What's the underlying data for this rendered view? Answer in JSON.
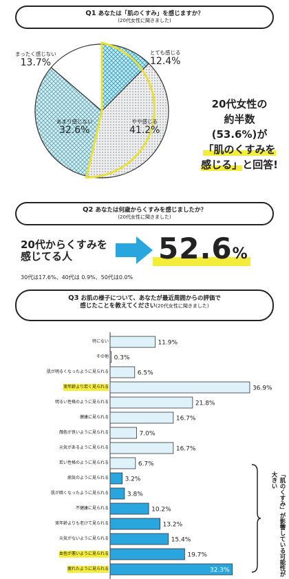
{
  "q1": {
    "num": "Q1",
    "question": "あなたは「肌のくすみ」を感じますか？",
    "sub": "(20代女性に聞きました)"
  },
  "pie": {
    "slices": [
      {
        "name": "とても感じる",
        "value": 12.4,
        "label": "12.4%",
        "color": "#bfe6ee"
      },
      {
        "name": "やや感じる",
        "value": 41.2,
        "label": "41.2%",
        "color": "#e9e9e9"
      },
      {
        "name": "あまり感じない",
        "value": 32.6,
        "label": "32.6%",
        "color": "#cfe9ee"
      },
      {
        "name": "まったく感じない",
        "value": 13.7,
        "label": "13.7%",
        "color": "#ffffff"
      }
    ]
  },
  "callout": {
    "l1": "20代女性の",
    "l2": "約半数",
    "l3": "(53.6%)が",
    "l4": "「肌のくすみを",
    "l5": "感じる」",
    "l5b": "と回答!"
  },
  "q2": {
    "num": "Q2",
    "question": "あなたは何歳からくすみを感じましたか？",
    "sub": "(20代女性に聞きました)",
    "left1": "20代からくすみを",
    "left2": "感じてる人",
    "big": "52.6",
    "unit": "%",
    "note": "30代は17.6%、40代は 0.9%、50代は0.0%"
  },
  "q3": {
    "num": "Q3",
    "question1": "お肌の様子について、あなたが最近周囲からの評価で",
    "question2": "感じたことを教えてください",
    "sub": "(20代女性に聞きました)"
  },
  "sidenote": "「肌のくすみ」が影響している可能性が大きい",
  "chart_data": {
    "type": "bar",
    "categories": [
      "特にない",
      "その他",
      "肌が明るくなったように見られる",
      "実年齢より若く見られる",
      "明るい性格のように見られる",
      "健康に見られる",
      "顔色が良いように見られる",
      "元気があるように見られる",
      "若い性格のように見られる",
      "病気のように見られる",
      "肌が暗くなったように見られる",
      "不健康に見られる",
      "実年齢よりも老けて見られる",
      "元気がないように見られる",
      "血色が悪いように見られる",
      "疲れたように見られる"
    ],
    "values": [
      11.9,
      0.3,
      6.5,
      36.9,
      21.8,
      16.7,
      7.0,
      16.7,
      6.7,
      3.2,
      3.8,
      10.2,
      13.2,
      15.4,
      19.7,
      32.3
    ],
    "labels": [
      "11.9%",
      "0.3%",
      "6.5%",
      "36.9%",
      "21.8%",
      "16.7%",
      "7.0%",
      "16.7%",
      "6.7%",
      "3.2%",
      "3.8%",
      "10.2%",
      "13.2%",
      "15.4%",
      "19.7%",
      "32.3%"
    ],
    "xlim": [
      0,
      40
    ],
    "colors": {
      "light": "#dff1f9",
      "dark": "#2aa6de",
      "highlight": "#f4ec3a"
    }
  }
}
